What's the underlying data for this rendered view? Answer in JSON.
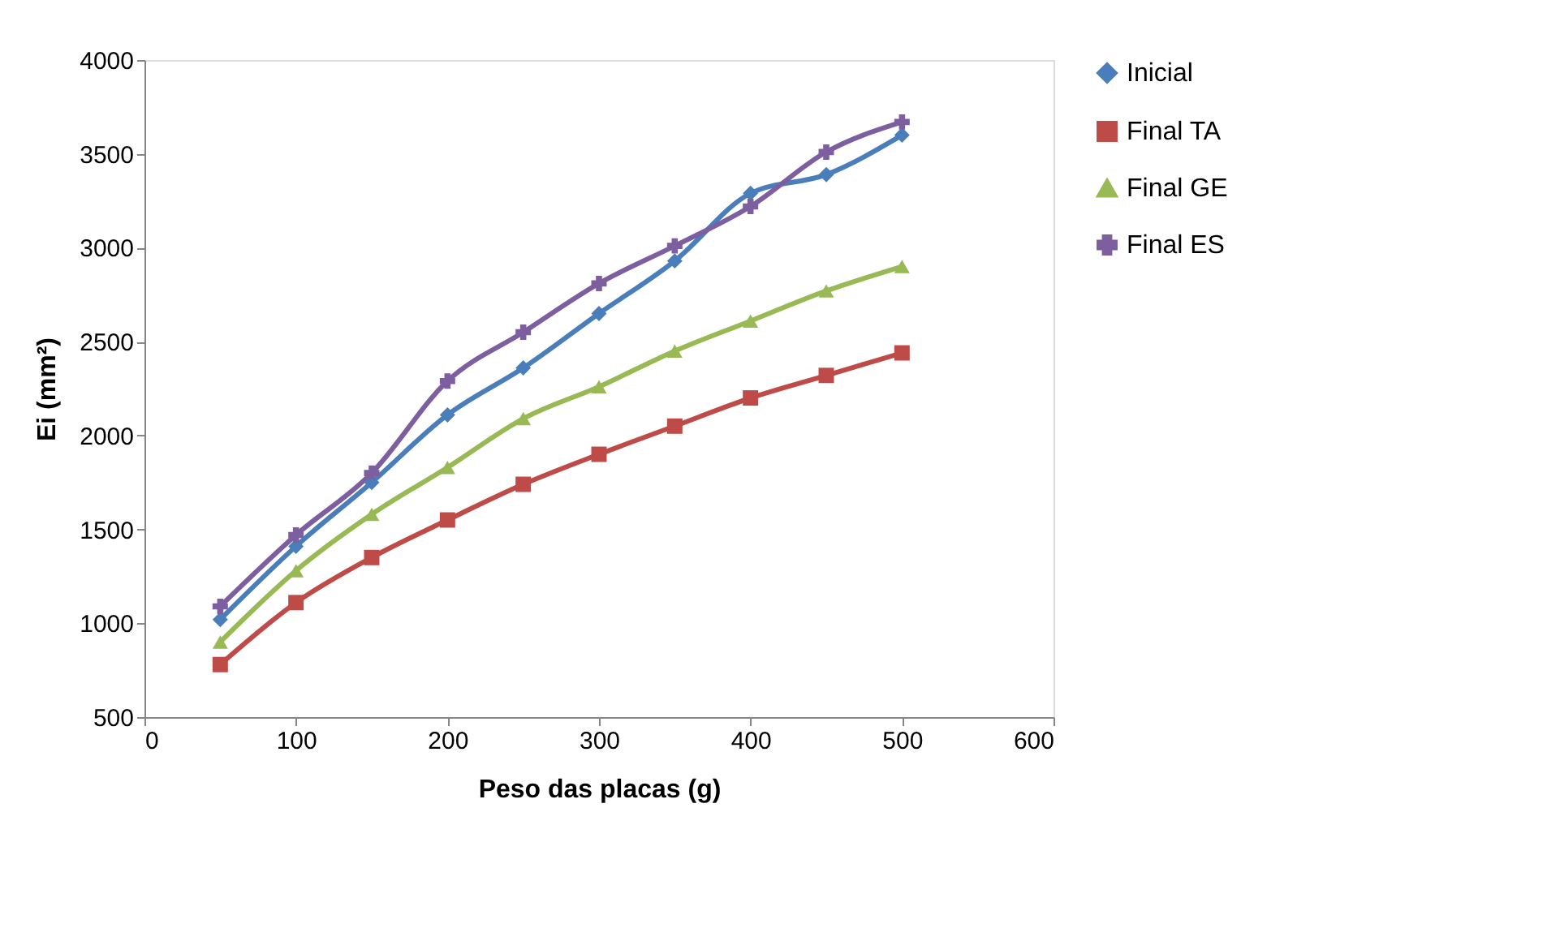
{
  "chart_data": {
    "type": "line",
    "xlabel": "Peso das placas (g)",
    "ylabel": "Ei (mm²)",
    "x": [
      50,
      100,
      150,
      200,
      250,
      300,
      350,
      400,
      450,
      500
    ],
    "xlim": [
      0,
      600
    ],
    "xticks": [
      0,
      100,
      200,
      300,
      400,
      500,
      600
    ],
    "ylim": [
      500,
      4000
    ],
    "yticks": [
      500,
      1000,
      1500,
      2000,
      2500,
      3000,
      3500,
      4000
    ],
    "grid": false,
    "legend": "right",
    "series": [
      {
        "name": "Inicial",
        "color": "#4a7ebb",
        "marker": "diamond",
        "values": [
          1020,
          1410,
          1750,
          2110,
          2360,
          2650,
          2930,
          3290,
          3390,
          3600
        ]
      },
      {
        "name": "Final TA",
        "color": "#be4b48",
        "marker": "square",
        "values": [
          780,
          1110,
          1350,
          1550,
          1740,
          1900,
          2050,
          2200,
          2320,
          2440
        ]
      },
      {
        "name": "Final GE",
        "color": "#98b954",
        "marker": "triangle",
        "values": [
          900,
          1280,
          1580,
          1830,
          2090,
          2260,
          2450,
          2610,
          2770,
          2900
        ]
      },
      {
        "name": "Final ES",
        "color": "#7d5fa0",
        "marker": "cross",
        "values": [
          1090,
          1470,
          1800,
          2290,
          2550,
          2810,
          3010,
          3220,
          3510,
          3670
        ]
      }
    ]
  }
}
